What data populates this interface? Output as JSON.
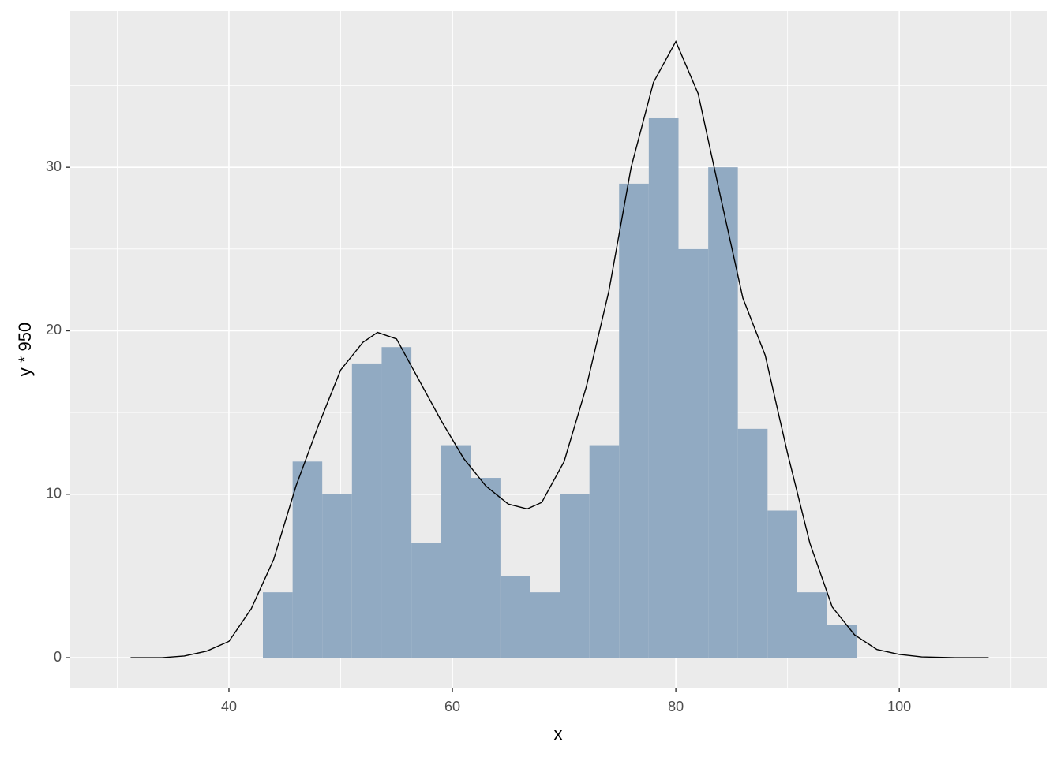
{
  "chart_data": {
    "type": "histogram",
    "x_label": "x",
    "y_label": "y * 950",
    "bins": [
      43.04,
      45.7,
      48.35,
      51.01,
      53.67,
      56.33,
      58.98,
      61.64,
      64.3,
      66.95,
      69.61,
      72.27,
      74.92,
      77.58,
      80.24,
      82.9,
      85.55,
      88.21,
      90.87,
      93.52,
      96.18
    ],
    "counts": [
      4,
      12,
      10,
      18,
      19,
      7,
      13,
      11,
      5,
      4,
      10,
      13,
      29,
      33,
      25,
      30,
      14,
      9,
      4,
      2
    ],
    "color": "#91aac2",
    "line": {
      "color": "#000000",
      "x": [
        31.2,
        34,
        36,
        38,
        40,
        42,
        44,
        46,
        48,
        50,
        52,
        53.3,
        55,
        57,
        59,
        61,
        63,
        65,
        66.7,
        68,
        70,
        72,
        74,
        76,
        78,
        80,
        82,
        84,
        86,
        88,
        90,
        92,
        94,
        96,
        98,
        100,
        102,
        105,
        108
      ],
      "y": [
        0,
        0,
        0.1,
        0.4,
        1.0,
        3.0,
        6.0,
        10.5,
        14.2,
        17.6,
        19.3,
        19.9,
        19.5,
        17.0,
        14.5,
        12.2,
        10.5,
        9.4,
        9.1,
        9.5,
        12.0,
        16.6,
        22.4,
        30.0,
        35.2,
        37.7,
        34.5,
        28.2,
        22.0,
        18.5,
        12.5,
        7.0,
        3.1,
        1.4,
        0.5,
        0.2,
        0.05,
        0,
        0
      ]
    },
    "xlim": [
      25.8,
      113.2
    ],
    "ylim": [
      -1.83,
      39.56
    ],
    "xticks": [
      40,
      60,
      80,
      100
    ],
    "yticks": [
      0,
      10,
      20,
      30
    ],
    "x_minor_grid": [
      30,
      50,
      70,
      90,
      110
    ],
    "y_minor_grid": [
      5,
      15,
      25,
      35
    ],
    "grid": true
  }
}
